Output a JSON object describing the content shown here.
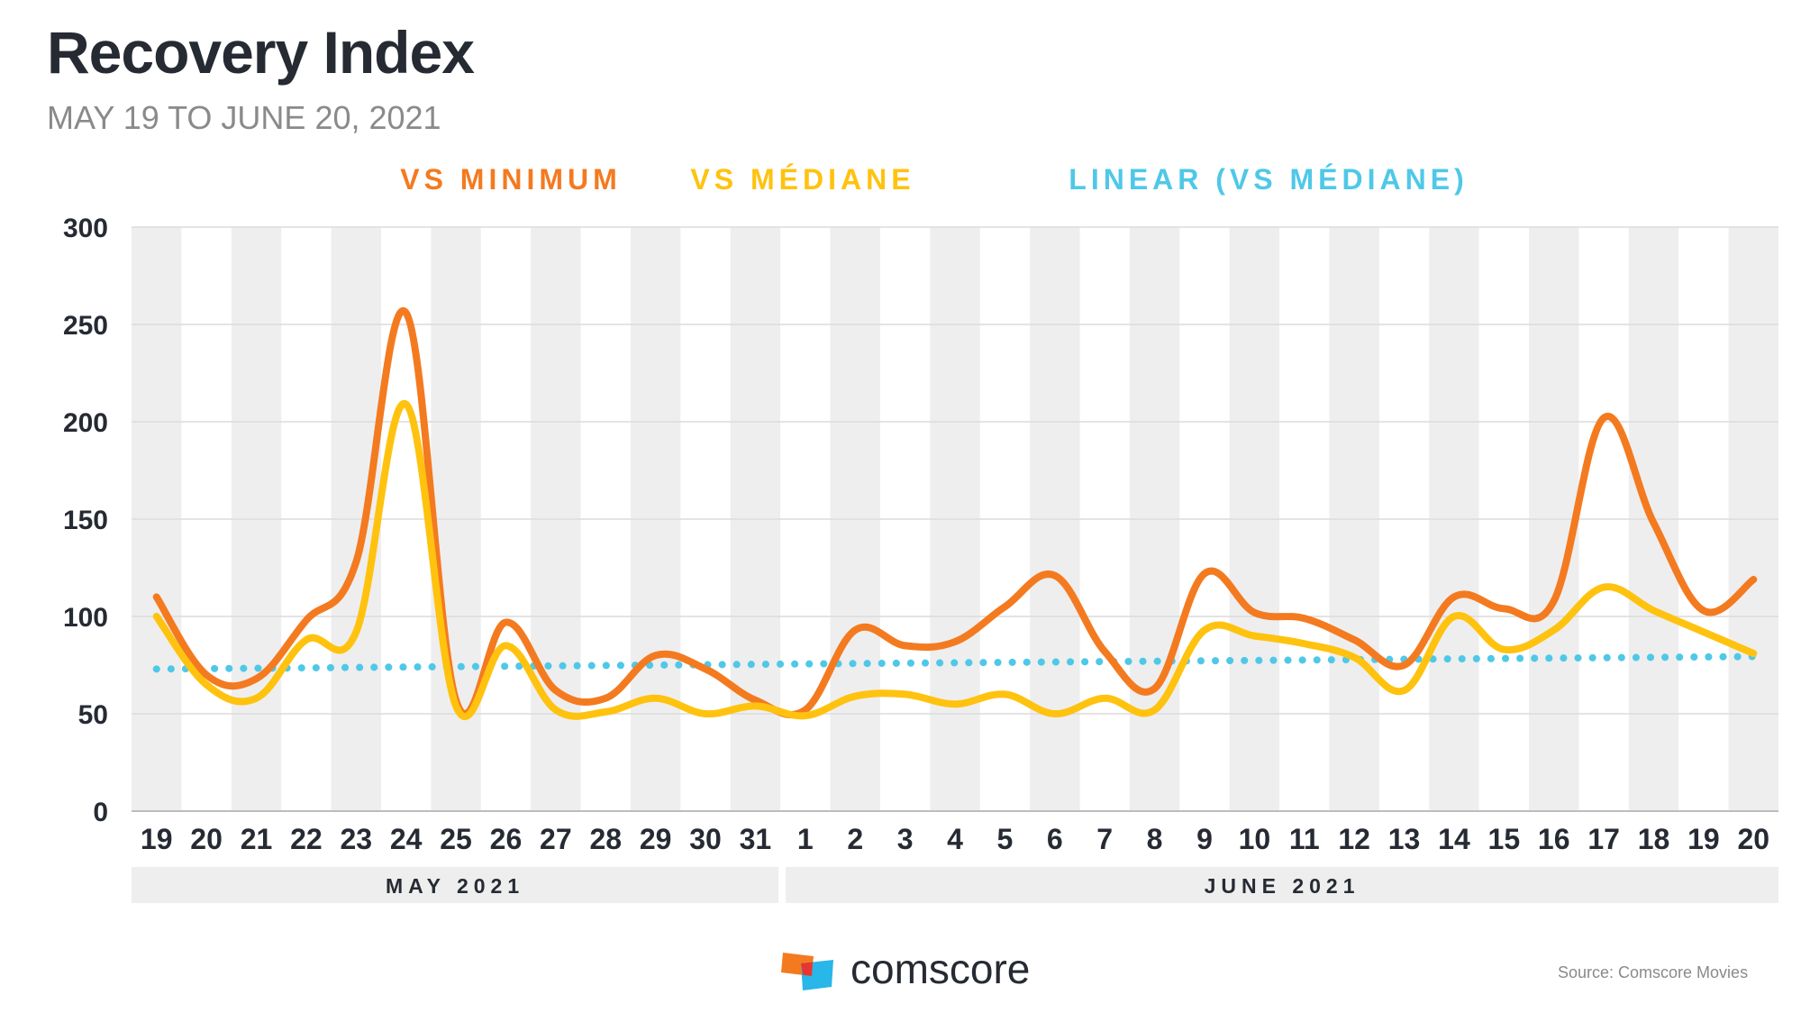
{
  "header": {
    "title": "Recovery Index",
    "subtitle": "MAY 19 TO JUNE 20, 2021"
  },
  "footer": {
    "brand": "comscore",
    "source": "Source: Comscore Movies"
  },
  "chart_data": {
    "type": "line",
    "categories": [
      "19",
      "20",
      "21",
      "22",
      "23",
      "24",
      "25",
      "26",
      "27",
      "28",
      "29",
      "30",
      "31",
      "1",
      "2",
      "3",
      "4",
      "5",
      "6",
      "7",
      "8",
      "9",
      "10",
      "11",
      "12",
      "13",
      "14",
      "15",
      "16",
      "17",
      "18",
      "19",
      "20"
    ],
    "months": [
      {
        "label": "MAY 2021",
        "from": 0,
        "to": 12
      },
      {
        "label": "JUNE 2021",
        "from": 13,
        "to": 32
      }
    ],
    "ylim": [
      0,
      300
    ],
    "yticks": [
      0,
      50,
      100,
      150,
      200,
      250,
      300
    ],
    "grid": true,
    "legend_position": "top-center",
    "series": [
      {
        "name": "VS MINIMUM",
        "color": "#f47a20",
        "style": "solid",
        "values": [
          110,
          70,
          68,
          98,
          128,
          256,
          57,
          97,
          62,
          58,
          80,
          73,
          57,
          52,
          93,
          85,
          87,
          105,
          121,
          82,
          63,
          122,
          102,
          99,
          88,
          75,
          110,
          104,
          108,
          202,
          148,
          103,
          119
        ]
      },
      {
        "name": "VS MÉDIANE",
        "color": "#ffc20e",
        "style": "solid",
        "values": [
          100,
          65,
          58,
          88,
          92,
          209,
          54,
          85,
          52,
          51,
          58,
          50,
          54,
          49,
          59,
          60,
          55,
          60,
          50,
          58,
          52,
          93,
          90,
          86,
          79,
          62,
          100,
          83,
          93,
          115,
          103,
          92,
          81
        ]
      },
      {
        "name": "LINEAR (VS MÉDIANE)",
        "color": "#4fc8e8",
        "style": "dotted",
        "values": [
          73,
          73.2,
          73.4,
          73.6,
          73.8,
          74,
          74.2,
          74.4,
          74.6,
          74.8,
          75,
          75.2,
          75.4,
          75.6,
          75.8,
          76,
          76.2,
          76.4,
          76.6,
          76.8,
          77,
          77.2,
          77.4,
          77.6,
          77.8,
          78,
          78.2,
          78.4,
          78.6,
          78.8,
          79,
          79.2,
          79.4
        ]
      }
    ]
  }
}
